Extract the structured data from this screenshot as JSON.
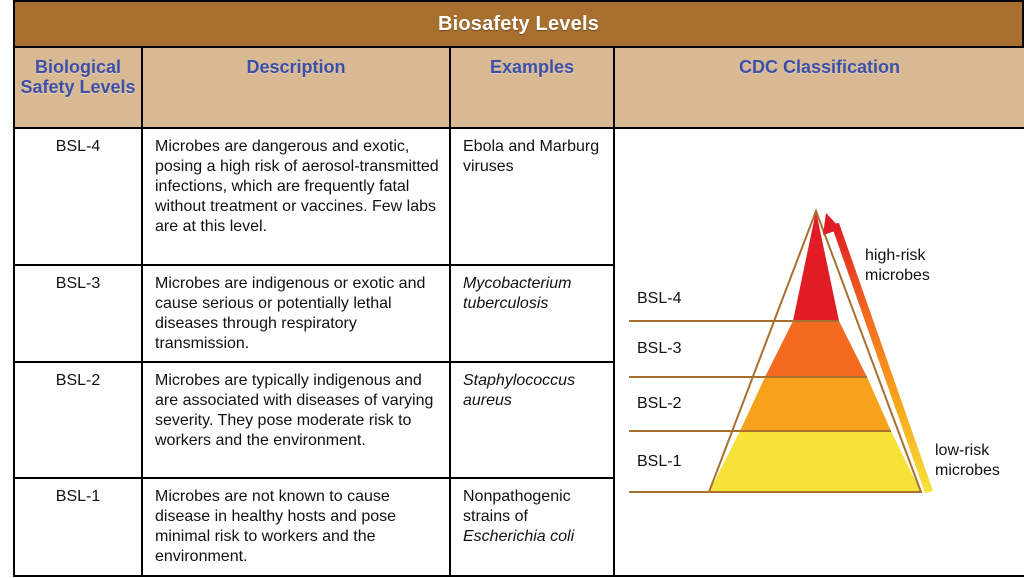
{
  "title": "Biosafety Levels",
  "headers": {
    "level": "Biological Safety Levels",
    "description": "Description",
    "examples": "Examples",
    "cdc": "CDC Classification"
  },
  "rows": [
    {
      "level": "BSL-4",
      "description": "Microbes are dangerous and exotic, posing a high risk of aerosol-transmitted infections, which are frequently fatal without treatment or vaccines. Few labs are at this level.",
      "example_text": "Ebola and Marburg viruses"
    },
    {
      "level": "BSL-3",
      "description": "Microbes are indigenous or exotic and cause serious or potentially lethal diseases through respiratory transmission.",
      "example_italic": "Mycobacterium tuberculosis"
    },
    {
      "level": "BSL-2",
      "description": "Microbes are typically indigenous and are associated with diseases of varying severity. They pose moderate risk to workers and the environment.",
      "example_italic": "Staphylococcus aureus"
    },
    {
      "level": "BSL-1",
      "description": "Microbes are not known to cause disease in healthy hosts and pose minimal risk to workers and the environment.",
      "example_text": "Nonpathogenic strains of",
      "example_italic": "Escherichia coli"
    }
  ],
  "pyramid": {
    "levels": [
      "BSL-4",
      "BSL-3",
      "BSL-2",
      "BSL-1"
    ],
    "high_risk_line1": "high-risk",
    "high_risk_line2": "microbes",
    "low_risk_line1": "low-risk",
    "low_risk_line2": "microbes"
  },
  "colors": {
    "title_bg": "#a8702f",
    "header_bg": "#d9b994",
    "header_text": "#3b4fa8",
    "bsl4": "#e01c24",
    "bsl3": "#f26b21",
    "bsl2": "#f7a21b",
    "bsl1": "#f7e23a",
    "divider": "#a8702f"
  }
}
